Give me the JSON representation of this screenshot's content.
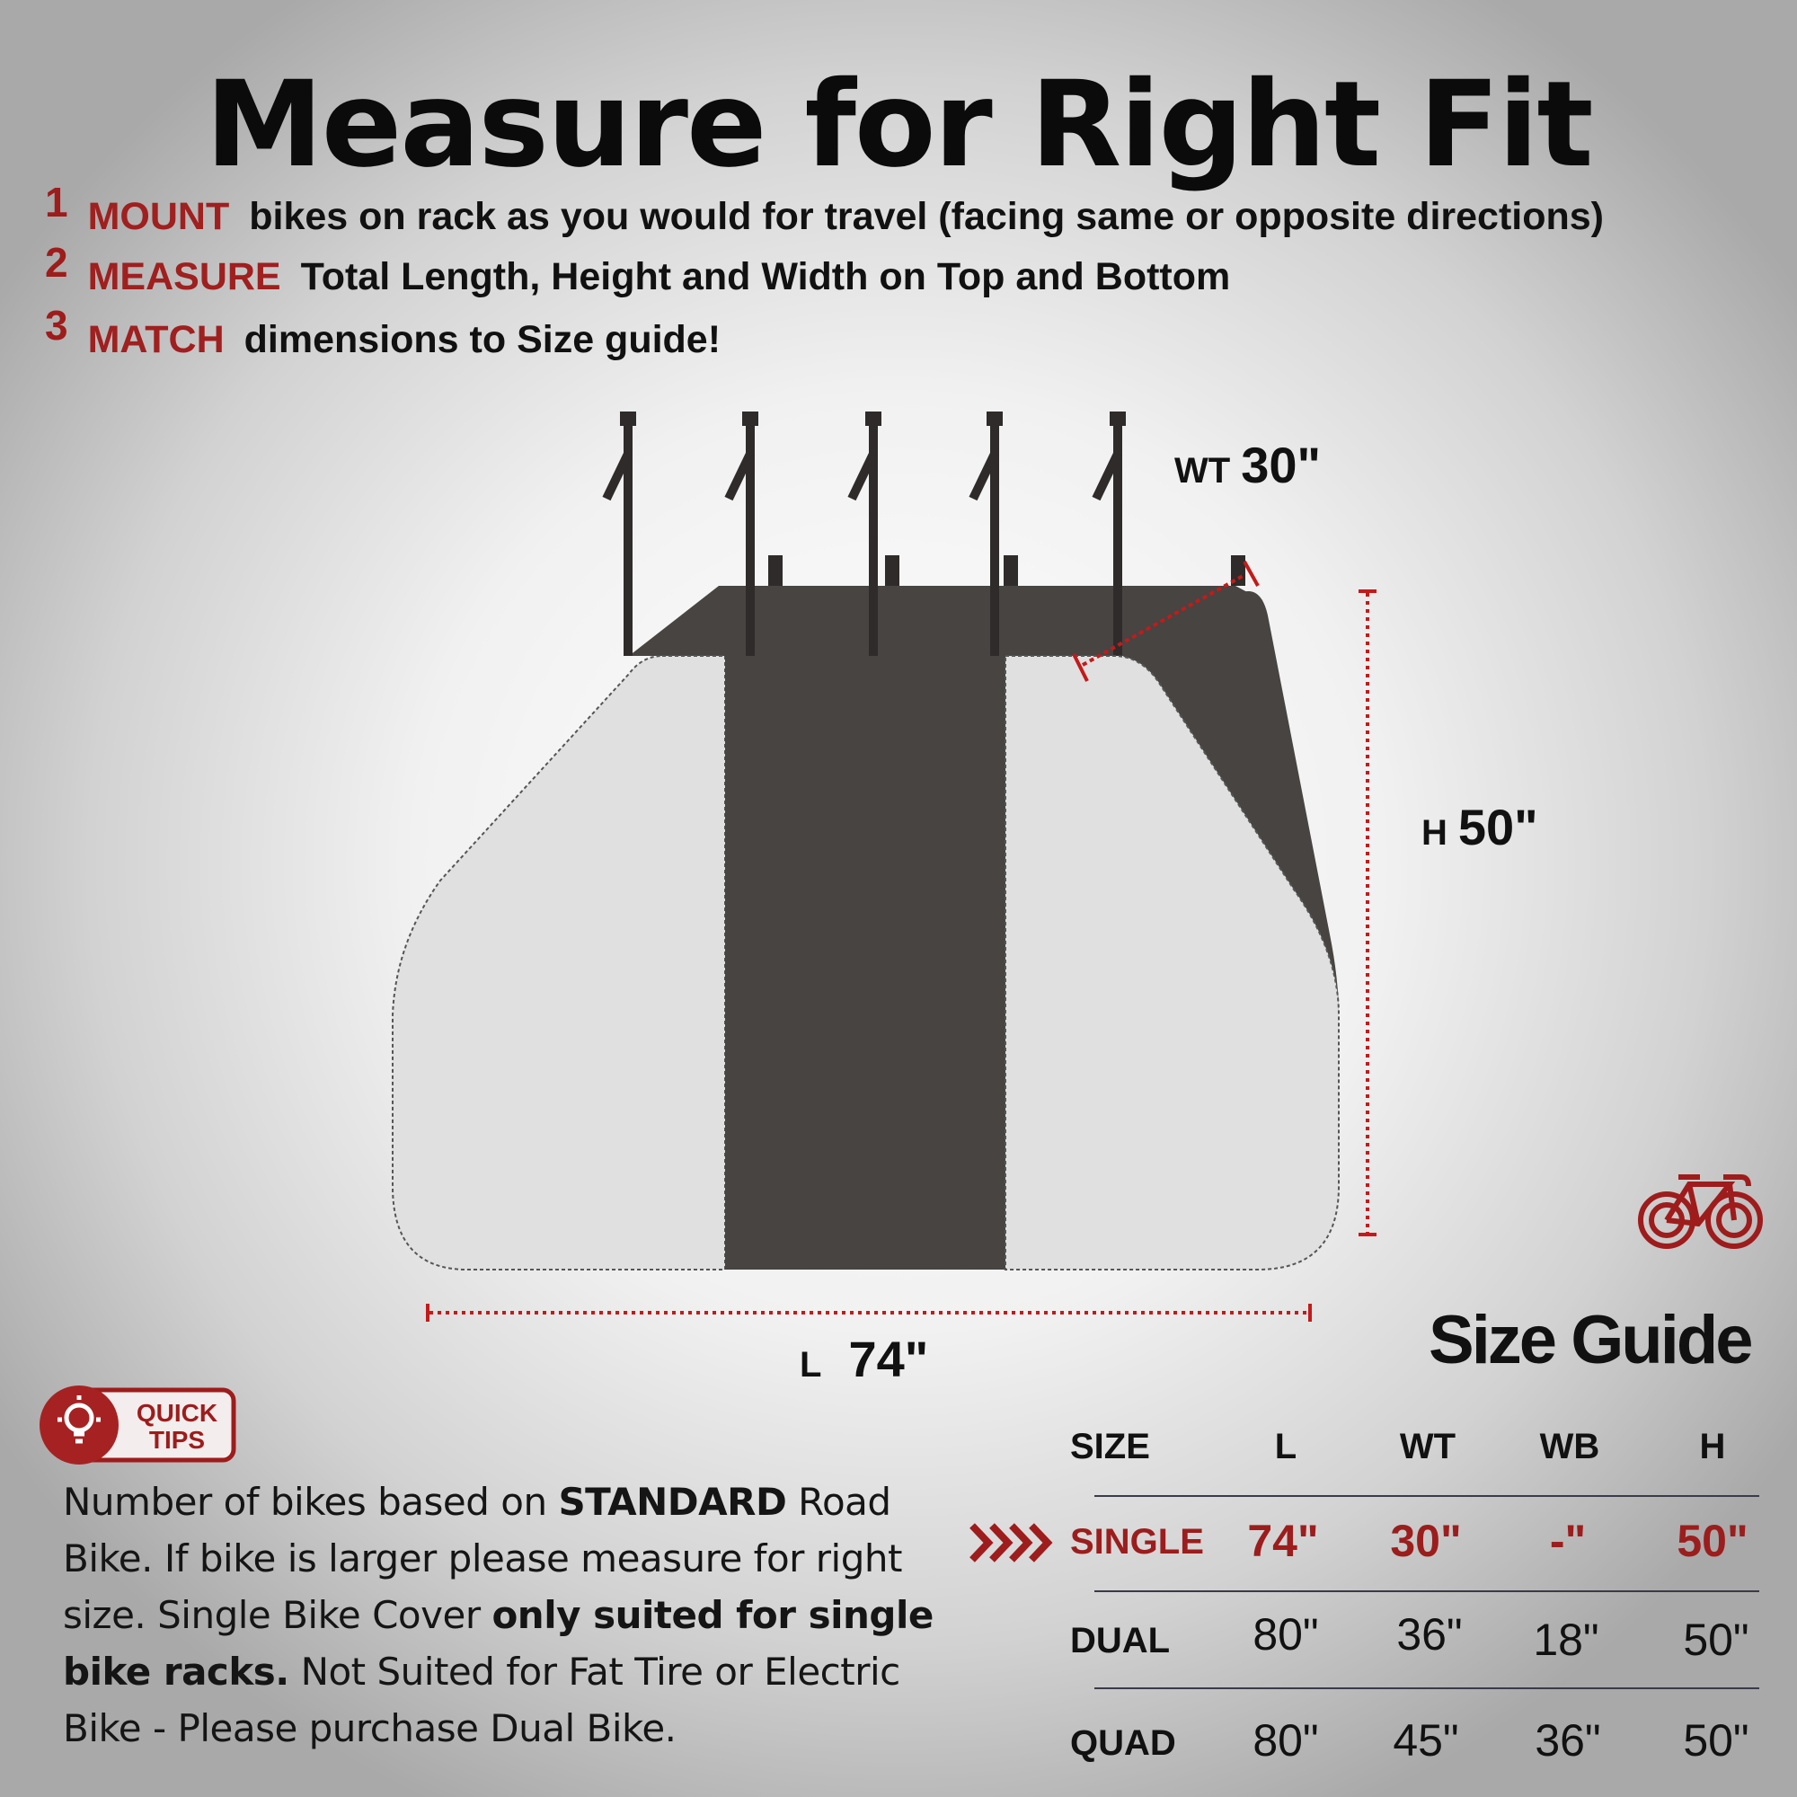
{
  "title": "Measure for Right Fit",
  "steps": [
    {
      "num": "1",
      "keyword": "MOUNT",
      "text": "bikes on rack as you would for travel (facing same or opposite directions)"
    },
    {
      "num": "2",
      "keyword": "MEASURE",
      "text": "Total Length, Height and Width on Top and Bottom"
    },
    {
      "num": "3",
      "keyword": "MATCH",
      "text": "dimensions to Size guide!"
    }
  ],
  "diagram": {
    "wt": {
      "unit": "WT",
      "value": "30\""
    },
    "h": {
      "unit": "H",
      "value": "50\""
    },
    "l": {
      "unit": "L",
      "value": "74\""
    }
  },
  "colors": {
    "accent": "#9e1c1c",
    "cover_light": "#e0e0e0",
    "cover_dark": "#464240"
  },
  "size_guide": {
    "title": "Size Guide",
    "headers": [
      "SIZE",
      "L",
      "WT",
      "WB",
      "H"
    ],
    "rows": [
      {
        "size": "SINGLE",
        "l": "74\"",
        "wt": "30\"",
        "wb": "-\"",
        "h": "50\"",
        "highlighted": true
      },
      {
        "size": "DUAL",
        "l": "80\"",
        "wt": "36\"",
        "wb": "18\"",
        "h": "50\""
      },
      {
        "size": "QUAD",
        "l": "80\"",
        "wt": "45\"",
        "wb": "36\"",
        "h": "50\""
      }
    ]
  },
  "quick_tips": {
    "badge_line1": "QUICK",
    "badge_line2": "TIPS",
    "p1": "Number of bikes based on ",
    "b1": "STANDARD",
    "p2": " Road Bike. If bike is larger please measure for right size. Single Bike Cover ",
    "b2": "only suited for single bike racks.",
    "p3": " Not Suited for Fat Tire or Electric Bike - Please purchase Dual Bike."
  },
  "icons": [
    "lightbulb-icon",
    "bicycle-icon",
    "chevrons-right-icon"
  ]
}
